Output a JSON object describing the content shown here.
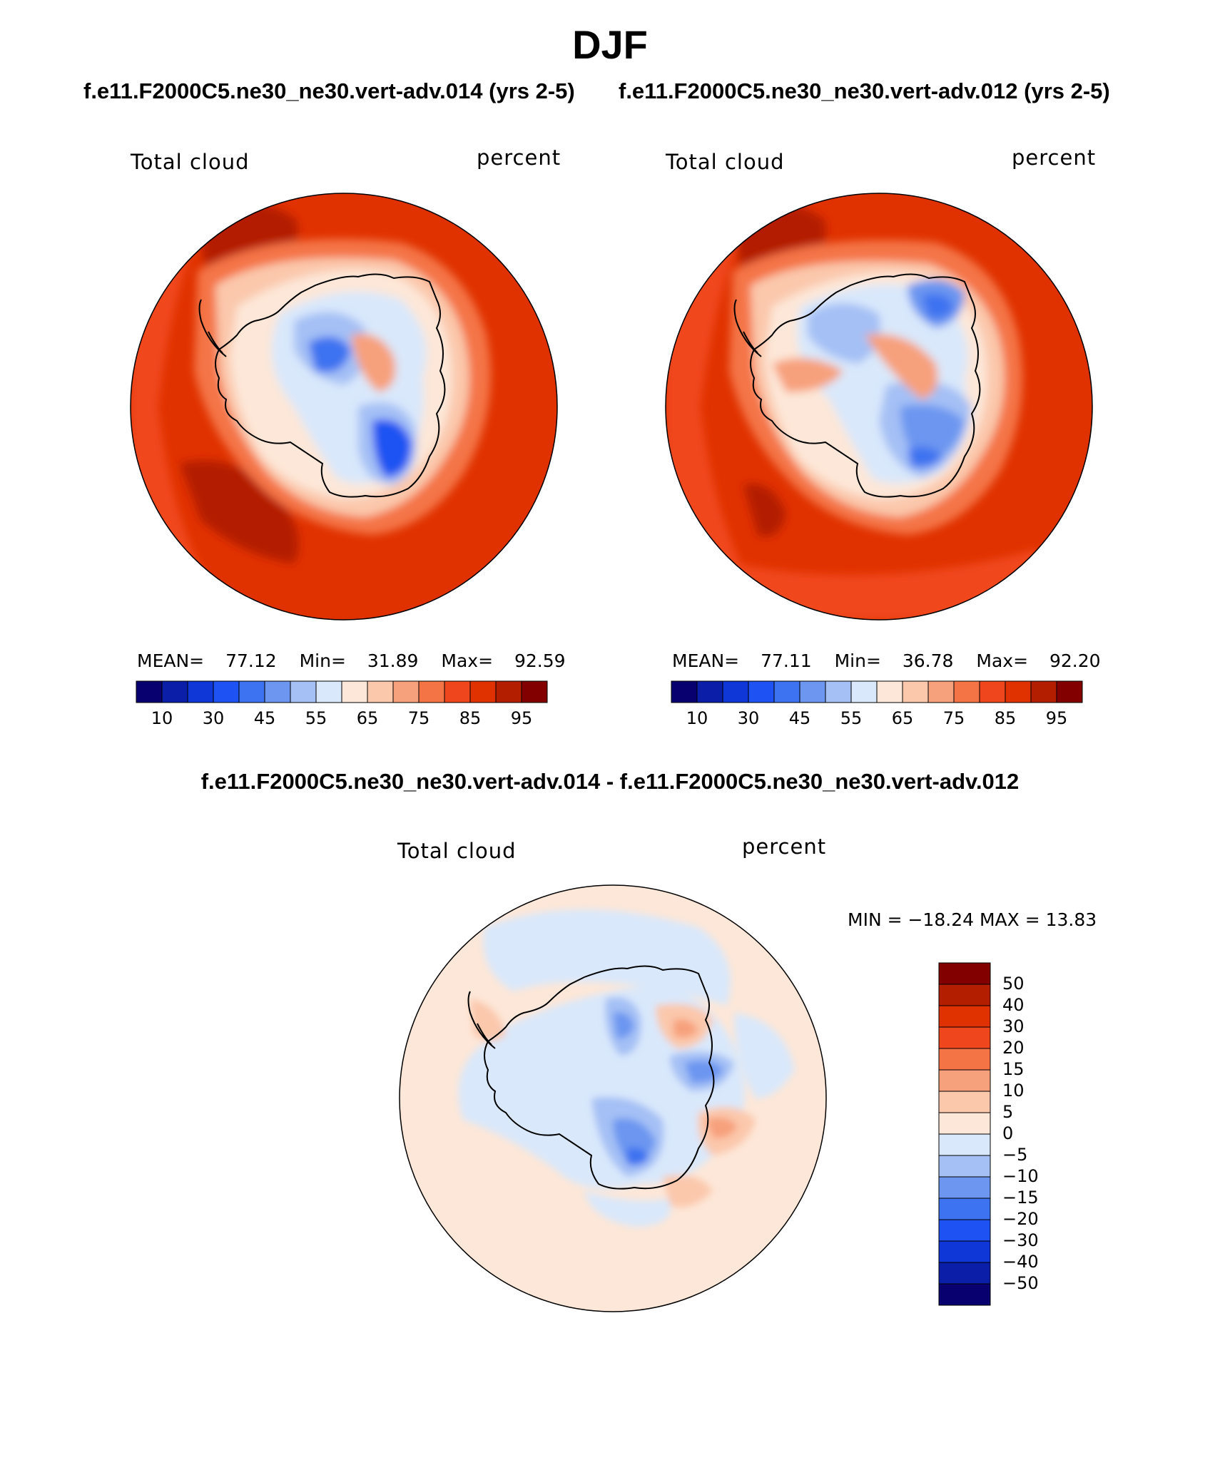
{
  "page_title": "DJF",
  "subtitle_left": "f.e11.F2000C5.ne30_ne30.vert-adv.014 (yrs 2-5)",
  "subtitle_right": "f.e11.F2000C5.ne30_ne30.vert-adv.012 (yrs 2-5)",
  "diff_title": "f.e11.F2000C5.ne30_ne30.vert-adv.014 - f.e11.F2000C5.ne30_ne30.vert-adv.012",
  "colors": {
    "abs_scale": [
      "#08006e",
      "#0a1ea8",
      "#0f36d6",
      "#1e52f2",
      "#3d72f0",
      "#6c96f0",
      "#a4c0f5",
      "#d9e8fb",
      "#fde7d8",
      "#fbc8ac",
      "#f7a07c",
      "#f47446",
      "#f0461e",
      "#e03200",
      "#b41e00",
      "#820000"
    ],
    "diff_scale": [
      "#08006e",
      "#0a1ea8",
      "#0f36d6",
      "#1e52f2",
      "#3d72f0",
      "#6c96f0",
      "#a4c0f5",
      "#d9e8fb",
      "#fde7d8",
      "#fbc8ac",
      "#f7a07c",
      "#f47446",
      "#f0461e",
      "#e03200",
      "#b41e00",
      "#820000"
    ]
  },
  "chart_data": [
    {
      "type": "heatmap",
      "projection": "south-polar-stereographic",
      "title": "f.e11.F2000C5.ne30_ne30.vert-adv.014 (yrs 2-5)",
      "left_label": "Total cloud",
      "right_label": "percent",
      "stats": {
        "mean_label": "MEAN=",
        "mean": "77.12",
        "min_label": "Min=",
        "min": "31.89",
        "max_label": "Max=",
        "max": "92.59"
      },
      "colorbar": {
        "orientation": "horizontal",
        "tick_labels": [
          "10",
          "30",
          "45",
          "55",
          "65",
          "75",
          "85",
          "95"
        ]
      }
    },
    {
      "type": "heatmap",
      "projection": "south-polar-stereographic",
      "title": "f.e11.F2000C5.ne30_ne30.vert-adv.012 (yrs 2-5)",
      "left_label": "Total cloud",
      "right_label": "percent",
      "stats": {
        "mean_label": "MEAN=",
        "mean": "77.11",
        "min_label": "Min=",
        "min": "36.78",
        "max_label": "Max=",
        "max": "92.20"
      },
      "colorbar": {
        "orientation": "horizontal",
        "tick_labels": [
          "10",
          "30",
          "45",
          "55",
          "65",
          "75",
          "85",
          "95"
        ]
      }
    },
    {
      "type": "heatmap",
      "projection": "south-polar-stereographic",
      "title": "f.e11.F2000C5.ne30_ne30.vert-adv.014 - f.e11.F2000C5.ne30_ne30.vert-adv.012",
      "left_label": "Total cloud",
      "right_label": "percent",
      "minmax_text": "MIN = −18.24 MAX =  13.83",
      "min": -18.24,
      "max": 13.83,
      "colorbar": {
        "orientation": "vertical",
        "tick_labels": [
          "50",
          "40",
          "30",
          "20",
          "15",
          "10",
          "5",
          "0",
          "−5",
          "−10",
          "−15",
          "−20",
          "−30",
          "−40",
          "−50"
        ]
      }
    }
  ]
}
